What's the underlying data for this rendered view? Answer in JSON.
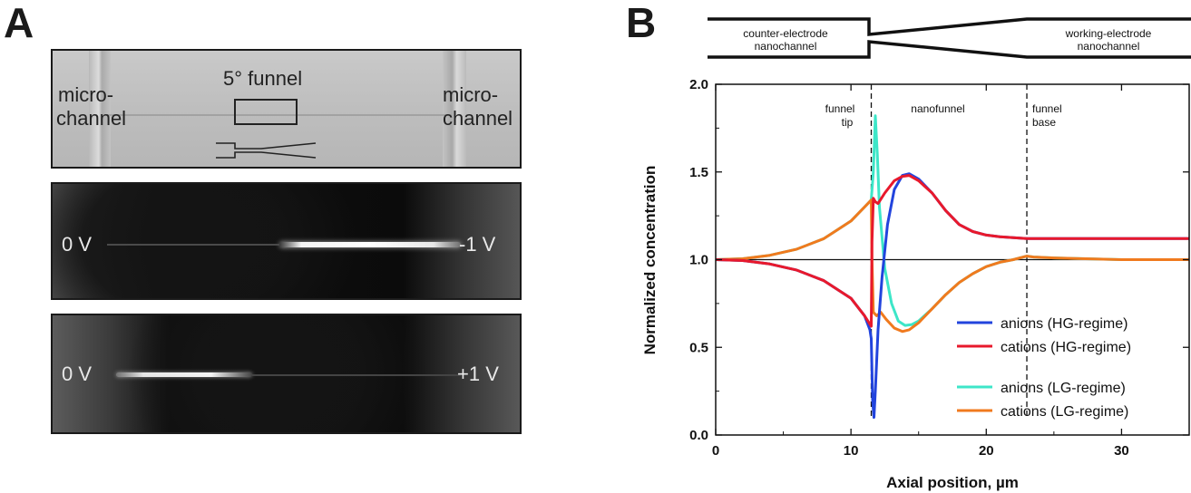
{
  "panel_a": {
    "letter": "A",
    "top_image": {
      "left_label_line1": "micro-",
      "left_label_line2": "channel",
      "right_label_line1": "micro-",
      "right_label_line2": "channel",
      "funnel_label": "5° funnel"
    },
    "middle_image": {
      "left_voltage": "0 V",
      "right_voltage": "-1 V"
    },
    "bottom_image": {
      "left_voltage": "0 V",
      "right_voltage": "+1 V"
    }
  },
  "panel_b": {
    "letter": "B",
    "schematic": {
      "left_label_line1": "counter-electrode",
      "left_label_line2": "nanochannel",
      "right_label_line1": "working-electrode",
      "right_label_line2": "nanochannel"
    },
    "annotations": {
      "funnel_tip_line1": "funnel",
      "funnel_tip_line2": "tip",
      "nanofunnel": "nanofunnel",
      "funnel_base_line1": "funnel",
      "funnel_base_line2": "base"
    }
  },
  "chart_data": {
    "type": "line",
    "xlabel": "Axial position, µm",
    "ylabel": "Normalized concentration",
    "xlim": [
      0,
      35
    ],
    "ylim": [
      0.0,
      2.0
    ],
    "xticks": [
      0,
      10,
      20,
      30
    ],
    "yticks": [
      0.0,
      0.5,
      1.0,
      1.5,
      2.0
    ],
    "x_tick_labels": [
      "0",
      "10",
      "20",
      "30"
    ],
    "y_tick_labels": [
      "0.0",
      "0.5",
      "1.0",
      "1.5",
      "2.0"
    ],
    "reference_line_y": 1.0,
    "vertical_markers_x": [
      11.5,
      23.0
    ],
    "legend_position": "bottom-right",
    "series": [
      {
        "name": "anions (HG-regime)",
        "color": "#2244dd",
        "points": [
          [
            0,
            1.0
          ],
          [
            2,
            0.995
          ],
          [
            4,
            0.975
          ],
          [
            6,
            0.94
          ],
          [
            8,
            0.88
          ],
          [
            10,
            0.78
          ],
          [
            11,
            0.68
          ],
          [
            11.4,
            0.6
          ],
          [
            11.5,
            0.55
          ],
          [
            11.6,
            0.2
          ],
          [
            11.7,
            0.1
          ],
          [
            11.8,
            0.25
          ],
          [
            12.0,
            0.6
          ],
          [
            12.3,
            0.9
          ],
          [
            12.7,
            1.2
          ],
          [
            13.2,
            1.4
          ],
          [
            13.8,
            1.48
          ],
          [
            14.3,
            1.49
          ],
          [
            15,
            1.46
          ],
          [
            16,
            1.38
          ],
          [
            17,
            1.28
          ],
          [
            18,
            1.2
          ],
          [
            19,
            1.16
          ],
          [
            20,
            1.14
          ],
          [
            21,
            1.13
          ],
          [
            22,
            1.125
          ],
          [
            23,
            1.12
          ],
          [
            25,
            1.12
          ],
          [
            30,
            1.12
          ],
          [
            35,
            1.12
          ]
        ]
      },
      {
        "name": "cations (HG-regime)",
        "color": "#e8192c",
        "points": [
          [
            0,
            1.0
          ],
          [
            2,
            0.995
          ],
          [
            4,
            0.975
          ],
          [
            6,
            0.94
          ],
          [
            8,
            0.88
          ],
          [
            10,
            0.78
          ],
          [
            11,
            0.68
          ],
          [
            11.5,
            0.62
          ],
          [
            11.55,
            1.1
          ],
          [
            11.65,
            1.35
          ],
          [
            11.8,
            1.33
          ],
          [
            12.0,
            1.32
          ],
          [
            12.5,
            1.38
          ],
          [
            13.2,
            1.45
          ],
          [
            13.8,
            1.475
          ],
          [
            14.3,
            1.48
          ],
          [
            15,
            1.45
          ],
          [
            16,
            1.38
          ],
          [
            17,
            1.28
          ],
          [
            18,
            1.2
          ],
          [
            19,
            1.16
          ],
          [
            20,
            1.14
          ],
          [
            21,
            1.13
          ],
          [
            22,
            1.125
          ],
          [
            23,
            1.12
          ],
          [
            25,
            1.12
          ],
          [
            30,
            1.12
          ],
          [
            35,
            1.12
          ]
        ]
      },
      {
        "name": "anions (LG-regime)",
        "color": "#3de6c8",
        "points": [
          [
            0,
            1.0
          ],
          [
            2,
            1.005
          ],
          [
            4,
            1.025
          ],
          [
            6,
            1.06
          ],
          [
            8,
            1.12
          ],
          [
            10,
            1.22
          ],
          [
            11,
            1.3
          ],
          [
            11.5,
            1.34
          ],
          [
            11.65,
            1.5
          ],
          [
            11.8,
            1.82
          ],
          [
            11.95,
            1.6
          ],
          [
            12.1,
            1.3
          ],
          [
            12.5,
            0.95
          ],
          [
            13,
            0.75
          ],
          [
            13.5,
            0.65
          ],
          [
            14,
            0.625
          ],
          [
            14.5,
            0.63
          ],
          [
            15,
            0.65
          ],
          [
            16,
            0.72
          ],
          [
            17,
            0.8
          ],
          [
            18,
            0.87
          ],
          [
            19,
            0.92
          ],
          [
            20,
            0.96
          ],
          [
            21,
            0.985
          ],
          [
            22,
            1.0
          ],
          [
            23,
            1.02
          ],
          [
            23.5,
            1.015
          ],
          [
            25,
            1.01
          ],
          [
            30,
            1.0
          ],
          [
            35,
            1.0
          ]
        ]
      },
      {
        "name": "cations (LG-regime)",
        "color": "#f07a1e",
        "points": [
          [
            0,
            1.0
          ],
          [
            2,
            1.005
          ],
          [
            4,
            1.025
          ],
          [
            6,
            1.06
          ],
          [
            8,
            1.12
          ],
          [
            10,
            1.22
          ],
          [
            11,
            1.3
          ],
          [
            11.5,
            1.34
          ],
          [
            11.55,
            1.0
          ],
          [
            11.65,
            0.7
          ],
          [
            11.9,
            0.68
          ],
          [
            12.2,
            0.7
          ],
          [
            12.6,
            0.66
          ],
          [
            13.2,
            0.61
          ],
          [
            13.8,
            0.59
          ],
          [
            14.3,
            0.6
          ],
          [
            15,
            0.64
          ],
          [
            16,
            0.72
          ],
          [
            17,
            0.8
          ],
          [
            18,
            0.87
          ],
          [
            19,
            0.92
          ],
          [
            20,
            0.96
          ],
          [
            21,
            0.985
          ],
          [
            22,
            1.0
          ],
          [
            23,
            1.02
          ],
          [
            23.5,
            1.015
          ],
          [
            25,
            1.01
          ],
          [
            30,
            1.0
          ],
          [
            35,
            1.0
          ]
        ]
      }
    ]
  }
}
